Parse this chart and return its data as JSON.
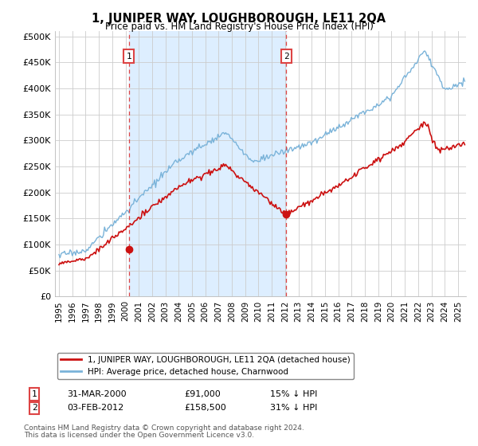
{
  "title": "1, JUNIPER WAY, LOUGHBOROUGH, LE11 2QA",
  "subtitle": "Price paid vs. HM Land Registry's House Price Index (HPI)",
  "ylabel_ticks": [
    "£0",
    "£50K",
    "£100K",
    "£150K",
    "£200K",
    "£250K",
    "£300K",
    "£350K",
    "£400K",
    "£450K",
    "£500K"
  ],
  "ytick_values": [
    0,
    50000,
    100000,
    150000,
    200000,
    250000,
    300000,
    350000,
    400000,
    450000,
    500000
  ],
  "ylim": [
    0,
    510000
  ],
  "hpi_color": "#7ab3d9",
  "price_color": "#cc1111",
  "vline_color": "#dd4444",
  "shade_color": "#ddeeff",
  "point1_x": 2000.25,
  "point1_y": 91000,
  "point2_x": 2012.085,
  "point2_y": 158500,
  "legend_line1": "1, JUNIPER WAY, LOUGHBOROUGH, LE11 2QA (detached house)",
  "legend_line2": "HPI: Average price, detached house, Charnwood",
  "footer1": "Contains HM Land Registry data © Crown copyright and database right 2024.",
  "footer2": "This data is licensed under the Open Government Licence v3.0.",
  "background_color": "#ffffff",
  "grid_color": "#cccccc",
  "xmin": 1994.7,
  "xmax": 2025.6
}
